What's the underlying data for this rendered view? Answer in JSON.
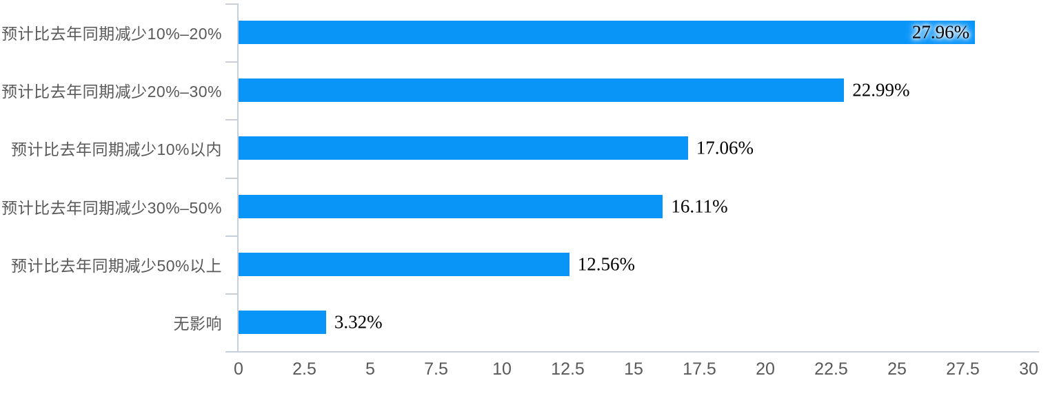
{
  "chart_data": {
    "type": "bar",
    "orientation": "horizontal",
    "title": "",
    "xlabel": "",
    "ylabel": "",
    "grid": false,
    "legend": null,
    "categories": [
      "预计比去年同期减少10%–20%",
      "预计比去年同期减少20%–30%",
      "预计比去年同期减少10%以内",
      "预计比去年同期减少30%–50%",
      "预计比去年同期减少50%以上",
      "无影响"
    ],
    "values": [
      27.96,
      22.99,
      17.06,
      16.11,
      12.56,
      3.32
    ],
    "value_labels": [
      "27.96%",
      "22.99%",
      "17.06%",
      "16.11%",
      "12.56%",
      "3.32%"
    ],
    "xlim": [
      0,
      30
    ],
    "x_ticks": [
      0,
      2.5,
      5,
      7.5,
      10,
      12.5,
      15,
      17.5,
      20,
      22.5,
      25,
      27.5,
      30
    ],
    "x_tick_labels": [
      "0",
      "2.5",
      "5",
      "7.5",
      "10",
      "12.5",
      "15",
      "17.5",
      "20",
      "22.5",
      "25",
      "27.5",
      "30"
    ],
    "colors": {
      "bar": "#0995F8",
      "axis": "#C7D0DA",
      "category_text": "#595959",
      "tick_text": "#595959",
      "value_text": "#000000"
    }
  }
}
